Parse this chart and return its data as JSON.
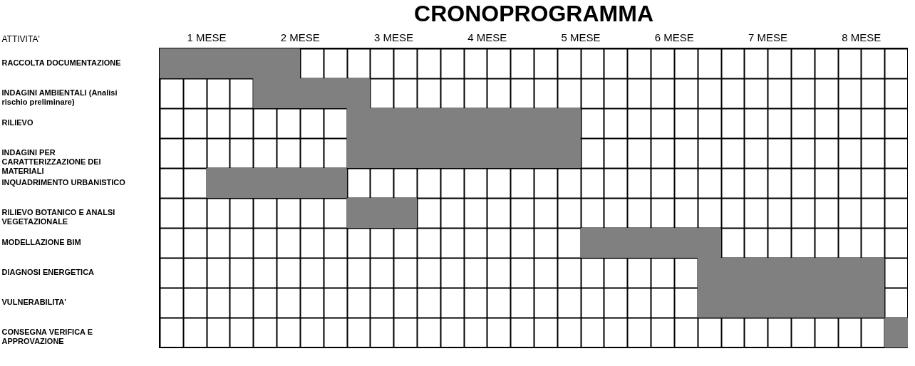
{
  "chart_data": {
    "type": "bar",
    "orientation": "horizontal",
    "title": "CRONOPROGRAMMA",
    "ylabel": "ATTIVITA'",
    "categories": [
      "RACCOLTA DOCUMENTAZIONE",
      "INDAGINI AMBIENTALI (Analisi rischio preliminare)",
      "RILIEVO",
      "INDAGINI PER CARATTERIZZAZIONE DEI MATERIALI",
      "INQUADRIMENTO URBANISTICO",
      "RILIEVO BOTANICO E ANALSI VEGETAZIONALE",
      "MODELLAZIONE BIM",
      "DIAGNOSI ENERGETICA",
      "VULNERABILITA'",
      "CONSEGNA VERIFICA E APPROVAZIONE"
    ],
    "base": [
      0.5,
      1.5,
      2.5,
      2.5,
      1.0,
      2.5,
      5.0,
      6.25,
      6.25,
      8.25
    ],
    "values": [
      1.5,
      1.25,
      2.5,
      2.5,
      1.5,
      0.75,
      1.5,
      2.0,
      2.0,
      0.25
    ],
    "color": "#808080",
    "xlim": [
      0.5,
      8.5
    ],
    "xticks": [
      {
        "value": 0.5,
        "label": null
      },
      {
        "value": 0.75,
        "label": null
      },
      {
        "value": 1,
        "label": "1 MESE"
      },
      {
        "value": 1.25,
        "label": null
      },
      {
        "value": 1.5,
        "label": null
      },
      {
        "value": 1.75,
        "label": null
      },
      {
        "value": 2,
        "label": "2 MESE"
      },
      {
        "value": 2.25,
        "label": null
      },
      {
        "value": 2.5,
        "label": null
      },
      {
        "value": 2.75,
        "label": null
      },
      {
        "value": 3,
        "label": "3 MESE"
      },
      {
        "value": 3.25,
        "label": null
      },
      {
        "value": 3.5,
        "label": null
      },
      {
        "value": 3.75,
        "label": null
      },
      {
        "value": 4,
        "label": "4 MESE"
      },
      {
        "value": 4.25,
        "label": null
      },
      {
        "value": 4.5,
        "label": null
      },
      {
        "value": 4.75,
        "label": null
      },
      {
        "value": 5,
        "label": "5 MESE"
      },
      {
        "value": 5.25,
        "label": null
      },
      {
        "value": 5.5,
        "label": null
      },
      {
        "value": 5.75,
        "label": null
      },
      {
        "value": 6,
        "label": "6 MESE"
      },
      {
        "value": 6.25,
        "label": null
      },
      {
        "value": 6.5,
        "label": null
      },
      {
        "value": 6.75,
        "label": null
      },
      {
        "value": 7,
        "label": "7 MESE"
      },
      {
        "value": 7.25,
        "label": null
      },
      {
        "value": 7.5,
        "label": null
      },
      {
        "value": 7.75,
        "label": null
      },
      {
        "value": 8,
        "label": "8 MESE"
      },
      {
        "value": 8.25,
        "label": null
      },
      {
        "value": 8.5,
        "label": null
      }
    ],
    "grid": true
  }
}
